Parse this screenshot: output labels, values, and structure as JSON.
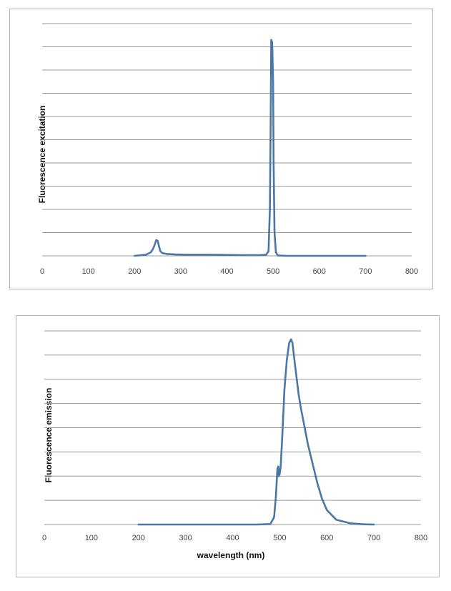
{
  "chart_data": [
    {
      "type": "line",
      "ylabel": "Fluorescence excitation",
      "xlabel": "",
      "xlim": [
        0,
        800
      ],
      "xticks": [
        "0",
        "100",
        "200",
        "300",
        "400",
        "500",
        "600",
        "700",
        "800"
      ],
      "ylim": [
        0,
        10
      ],
      "y_gridlines": 10,
      "grid": true,
      "color": "#4a76a8",
      "series": [
        {
          "x": [
            200,
            225,
            235,
            240,
            244,
            247,
            250,
            253,
            256,
            260,
            270,
            290,
            320,
            360,
            400,
            440,
            470,
            485,
            490,
            493,
            495,
            496,
            498,
            500,
            501,
            503,
            506,
            510,
            530,
            560,
            600,
            650,
            700
          ],
          "y": [
            0.0,
            0.05,
            0.15,
            0.3,
            0.5,
            0.68,
            0.65,
            0.4,
            0.2,
            0.12,
            0.08,
            0.06,
            0.05,
            0.05,
            0.04,
            0.03,
            0.03,
            0.05,
            0.2,
            2.0,
            6.5,
            9.3,
            9.2,
            7.5,
            4.0,
            1.0,
            0.15,
            0.02,
            0.0,
            0.0,
            0.0,
            0.0,
            0.0
          ]
        }
      ]
    },
    {
      "type": "line",
      "ylabel": "Fluorescence emission",
      "xlabel": "wavelength (nm)",
      "xlim": [
        0,
        800
      ],
      "xticks": [
        "0",
        "100",
        "200",
        "300",
        "400",
        "500",
        "600",
        "700",
        "800"
      ],
      "ylim": [
        0,
        8
      ],
      "y_gridlines": 8,
      "grid": true,
      "color": "#4a76a8",
      "series": [
        {
          "x": [
            200,
            300,
            400,
            450,
            480,
            488,
            492,
            495,
            497,
            498,
            500,
            502,
            505,
            510,
            515,
            520,
            524,
            527,
            530,
            535,
            540,
            545,
            550,
            560,
            570,
            580,
            590,
            600,
            620,
            650,
            680,
            700
          ],
          "y": [
            0.0,
            0.0,
            0.0,
            0.0,
            0.02,
            0.3,
            1.2,
            2.3,
            2.4,
            2.0,
            2.1,
            2.4,
            3.5,
            5.6,
            6.8,
            7.5,
            7.65,
            7.5,
            7.0,
            6.2,
            5.4,
            4.8,
            4.3,
            3.3,
            2.5,
            1.7,
            1.05,
            0.6,
            0.2,
            0.05,
            0.01,
            0.0
          ]
        }
      ]
    }
  ]
}
